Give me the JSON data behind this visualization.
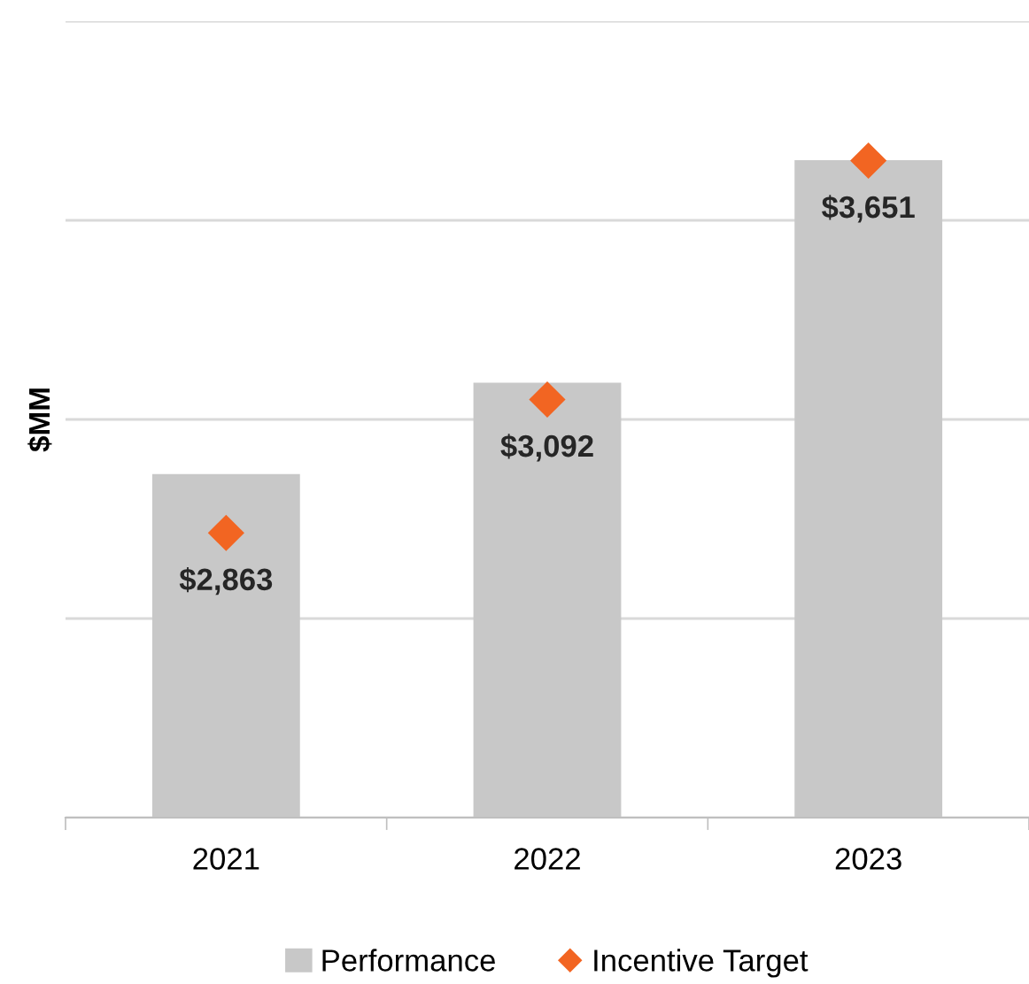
{
  "chart_data": {
    "type": "bar",
    "ylabel": "$MM",
    "categories": [
      "2021",
      "2022",
      "2023"
    ],
    "series": [
      {
        "name": "Performance",
        "color": "#c8c8c8",
        "values": [
          2863,
          3092,
          3651
        ],
        "value_labels": [
          "$2,863",
          "$3,092",
          "$3,651"
        ]
      },
      {
        "name": "Incentive Target",
        "type": "scatter",
        "color": "#f26522",
        "marker": "diamond",
        "values": [
          2715,
          3050,
          3650
        ]
      }
    ],
    "ylim": [
      2000,
      4000
    ],
    "yticks": [
      {
        "value": 2000,
        "label": null
      },
      {
        "value": 2500,
        "label": null
      },
      {
        "value": 3000,
        "label": null
      },
      {
        "value": 3500,
        "label": null
      },
      {
        "value": 4000,
        "label": null
      }
    ],
    "tick_labels": "x",
    "grid": "y",
    "legend": "bottom"
  }
}
